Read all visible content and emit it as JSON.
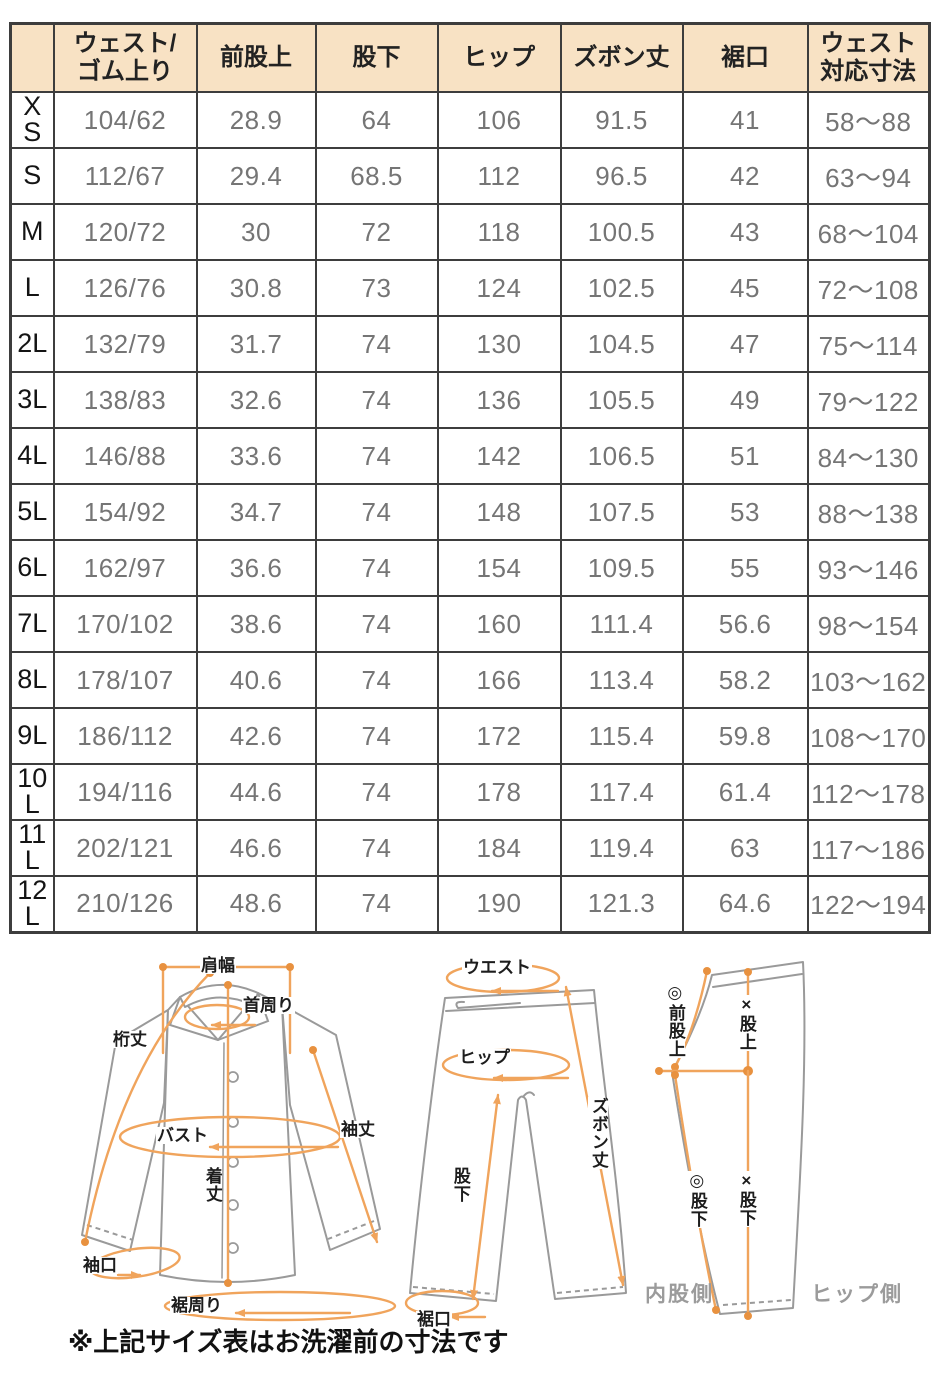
{
  "table": {
    "headers": [
      "",
      "ウェスト/\nゴム上り",
      "前股上",
      "股下",
      "ヒップ",
      "ズボン丈",
      "裾口",
      "ウェスト\n対応寸法"
    ],
    "rows": [
      [
        "XS",
        "104/62",
        "28.9",
        "64",
        "106",
        "91.5",
        "41",
        "58～88"
      ],
      [
        "S",
        "112/67",
        "29.4",
        "68.5",
        "112",
        "96.5",
        "42",
        "63～94"
      ],
      [
        "M",
        "120/72",
        "30",
        "72",
        "118",
        "100.5",
        "43",
        "68～104"
      ],
      [
        "L",
        "126/76",
        "30.8",
        "73",
        "124",
        "102.5",
        "45",
        "72～108"
      ],
      [
        "2L",
        "132/79",
        "31.7",
        "74",
        "130",
        "104.5",
        "47",
        "75～114"
      ],
      [
        "3L",
        "138/83",
        "32.6",
        "74",
        "136",
        "105.5",
        "49",
        "79～122"
      ],
      [
        "4L",
        "146/88",
        "33.6",
        "74",
        "142",
        "106.5",
        "51",
        "84～130"
      ],
      [
        "5L",
        "154/92",
        "34.7",
        "74",
        "148",
        "107.5",
        "53",
        "88～138"
      ],
      [
        "6L",
        "162/97",
        "36.6",
        "74",
        "154",
        "109.5",
        "55",
        "93～146"
      ],
      [
        "7L",
        "170/102",
        "38.6",
        "74",
        "160",
        "111.4",
        "56.6",
        "98～154"
      ],
      [
        "8L",
        "178/107",
        "40.6",
        "74",
        "166",
        "113.4",
        "58.2",
        "103～162"
      ],
      [
        "9L",
        "186/112",
        "42.6",
        "74",
        "172",
        "115.4",
        "59.8",
        "108～170"
      ],
      [
        "10L",
        "194/116",
        "44.6",
        "74",
        "178",
        "117.4",
        "61.4",
        "112～178"
      ],
      [
        "11L",
        "202/121",
        "46.6",
        "74",
        "184",
        "119.4",
        "63",
        "117～186"
      ],
      [
        "12L",
        "210/126",
        "48.6",
        "74",
        "190",
        "121.3",
        "64.6",
        "122～194"
      ]
    ]
  },
  "diagrams": {
    "shirt": {
      "shoulder_width": "肩幅",
      "neck_around": "首周り",
      "sleeve_from_center": "桁丈",
      "bust": "バスト",
      "sleeve_length": "袖丈",
      "body_length": "着丈",
      "cuff_opening": "袖口",
      "hem_around": "裾周り"
    },
    "pants_front": {
      "waist": "ウエスト",
      "hip": "ヒップ",
      "pants_length": "ズボン丈",
      "inseam": "股下",
      "hem_opening": "裾口"
    },
    "pants_side": {
      "front_rise": "◎前股上",
      "cross_rise": "×股上",
      "inseam_mark": "◎股下",
      "cross_inseam": "×股下",
      "inner_side": "内股側",
      "hip_side": "ヒップ側"
    }
  },
  "footer": {
    "note": "※上記サイズ表はお洗濯前の寸法です"
  },
  "colors": {
    "header_bg": "#f8e2c4",
    "table_border": "#3d3d3d",
    "value_text": "#757575",
    "accent_orange": "#f0a45c",
    "dot_orange": "#e8913f",
    "outline_gray": "#9a9a9a"
  }
}
